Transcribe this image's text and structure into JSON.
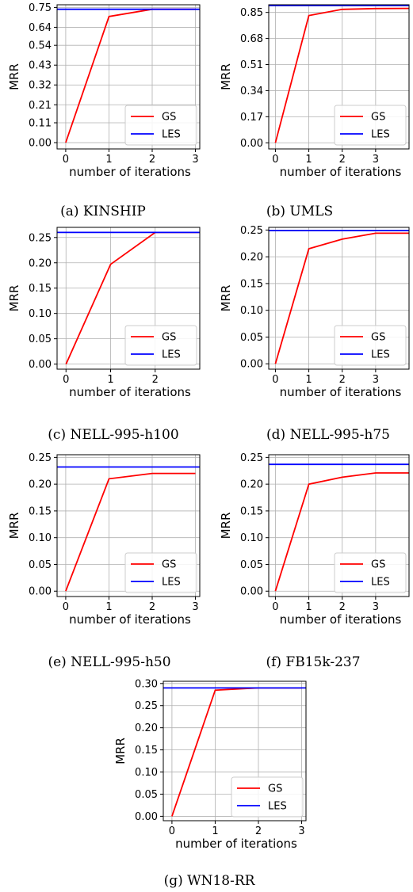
{
  "colors": {
    "gs": "#ff0000",
    "les": "#0000ff",
    "grid": "#b0b0b0",
    "axis": "#000000"
  },
  "chart_data": [
    {
      "type": "line",
      "caption": "(a) KINSHIP",
      "xlabel": "number of iterations",
      "ylabel": "MRR",
      "xlim": [
        -0.2,
        3.1
      ],
      "ylim": [
        -0.035,
        0.765
      ],
      "xticks": [
        0,
        1,
        2,
        3
      ],
      "yticks": [
        0.0,
        0.11,
        0.21,
        0.32,
        0.43,
        0.54,
        0.64,
        0.75
      ],
      "ytick_labels": [
        "0.00",
        "0.11",
        "0.21",
        "0.32",
        "0.43",
        "0.54",
        "0.64",
        "0.75"
      ],
      "grid": true,
      "legend_position": "lower-right",
      "series": [
        {
          "name": "GS",
          "color": "#ff0000",
          "x": [
            0,
            1,
            2,
            3
          ],
          "y": [
            0.0,
            0.7,
            0.74,
            0.74
          ]
        },
        {
          "name": "LES",
          "color": "#0000ff",
          "x": [
            -0.2,
            3.1
          ],
          "y": [
            0.74,
            0.74
          ]
        }
      ]
    },
    {
      "type": "line",
      "caption": "(b) UMLS",
      "xlabel": "number of iterations",
      "ylabel": "MRR",
      "xlim": [
        -0.2,
        4.0
      ],
      "ylim": [
        -0.04,
        0.9
      ],
      "xticks": [
        0,
        1,
        2,
        3
      ],
      "yticks": [
        0.0,
        0.17,
        0.34,
        0.51,
        0.68,
        0.85
      ],
      "ytick_labels": [
        "0.00",
        "0.17",
        "0.34",
        "0.51",
        "0.68",
        "0.85"
      ],
      "grid": true,
      "legend_position": "lower-right",
      "series": [
        {
          "name": "GS",
          "color": "#ff0000",
          "x": [
            0,
            1,
            2,
            3,
            4
          ],
          "y": [
            0.0,
            0.83,
            0.87,
            0.875,
            0.876
          ]
        },
        {
          "name": "LES",
          "color": "#0000ff",
          "x": [
            -0.2,
            4.0
          ],
          "y": [
            0.895,
            0.895
          ]
        }
      ]
    },
    {
      "type": "line",
      "caption": "(c) NELL-995-h100",
      "xlabel": "number of iterations",
      "ylabel": "MRR",
      "xlim": [
        -0.2,
        3.0
      ],
      "ylim": [
        -0.01,
        0.27
      ],
      "xticks": [
        0,
        1,
        2
      ],
      "yticks": [
        0.0,
        0.05,
        0.1,
        0.15,
        0.2,
        0.25
      ],
      "ytick_labels": [
        "0.00",
        "0.05",
        "0.10",
        "0.15",
        "0.20",
        "0.25"
      ],
      "grid": true,
      "legend_position": "lower-right",
      "series": [
        {
          "name": "GS",
          "color": "#ff0000",
          "x": [
            0,
            1,
            2,
            3
          ],
          "y": [
            0.0,
            0.197,
            0.26,
            0.26
          ]
        },
        {
          "name": "LES",
          "color": "#0000ff",
          "x": [
            -0.2,
            3.0
          ],
          "y": [
            0.26,
            0.26
          ]
        }
      ]
    },
    {
      "type": "line",
      "caption": "(d) NELL-995-h75",
      "xlabel": "number of iterations",
      "ylabel": "MRR",
      "xlim": [
        -0.2,
        4.0
      ],
      "ylim": [
        -0.01,
        0.255
      ],
      "xticks": [
        0,
        1,
        2,
        3
      ],
      "yticks": [
        0.0,
        0.05,
        0.1,
        0.15,
        0.2,
        0.25
      ],
      "ytick_labels": [
        "0.00",
        "0.05",
        "0.10",
        "0.15",
        "0.20",
        "0.25"
      ],
      "grid": true,
      "legend_position": "lower-right",
      "series": [
        {
          "name": "GS",
          "color": "#ff0000",
          "x": [
            0,
            1,
            2,
            3,
            4
          ],
          "y": [
            0.0,
            0.215,
            0.233,
            0.244,
            0.244
          ]
        },
        {
          "name": "LES",
          "color": "#0000ff",
          "x": [
            -0.2,
            4.0
          ],
          "y": [
            0.249,
            0.249
          ]
        }
      ]
    },
    {
      "type": "line",
      "caption": "(e) NELL-995-h50",
      "xlabel": "number of iterations",
      "ylabel": "MRR",
      "xlim": [
        -0.2,
        3.1
      ],
      "ylim": [
        -0.01,
        0.255
      ],
      "xticks": [
        0,
        1,
        2,
        3
      ],
      "yticks": [
        0.0,
        0.05,
        0.1,
        0.15,
        0.2,
        0.25
      ],
      "ytick_labels": [
        "0.00",
        "0.05",
        "0.10",
        "0.15",
        "0.20",
        "0.25"
      ],
      "grid": true,
      "legend_position": "lower-right",
      "series": [
        {
          "name": "GS",
          "color": "#ff0000",
          "x": [
            0,
            1,
            2,
            3
          ],
          "y": [
            0.0,
            0.21,
            0.22,
            0.22
          ]
        },
        {
          "name": "LES",
          "color": "#0000ff",
          "x": [
            -0.2,
            3.1
          ],
          "y": [
            0.232,
            0.232
          ]
        }
      ]
    },
    {
      "type": "line",
      "caption": "(f) FB15k-237",
      "xlabel": "number of iterations",
      "ylabel": "MRR",
      "xlim": [
        -0.2,
        4.0
      ],
      "ylim": [
        -0.01,
        0.255
      ],
      "xticks": [
        0,
        1,
        2,
        3
      ],
      "yticks": [
        0.0,
        0.05,
        0.1,
        0.15,
        0.2,
        0.25
      ],
      "ytick_labels": [
        "0.00",
        "0.05",
        "0.10",
        "0.15",
        "0.20",
        "0.25"
      ],
      "grid": true,
      "legend_position": "lower-right",
      "series": [
        {
          "name": "GS",
          "color": "#ff0000",
          "x": [
            0,
            1,
            2,
            3,
            4
          ],
          "y": [
            0.0,
            0.2,
            0.213,
            0.221,
            0.221
          ]
        },
        {
          "name": "LES",
          "color": "#0000ff",
          "x": [
            -0.2,
            4.0
          ],
          "y": [
            0.237,
            0.237
          ]
        }
      ]
    },
    {
      "type": "line",
      "caption": "(g) WN18-RR",
      "xlabel": "number of iterations",
      "ylabel": "MRR",
      "xlim": [
        -0.2,
        3.1
      ],
      "ylim": [
        -0.01,
        0.305
      ],
      "xticks": [
        0,
        1,
        2,
        3
      ],
      "yticks": [
        0.0,
        0.05,
        0.1,
        0.15,
        0.2,
        0.25,
        0.3
      ],
      "ytick_labels": [
        "0.00",
        "0.05",
        "0.10",
        "0.15",
        "0.20",
        "0.25",
        "0.30"
      ],
      "grid": true,
      "legend_position": "lower-right",
      "series": [
        {
          "name": "GS",
          "color": "#ff0000",
          "x": [
            0,
            1,
            2,
            3
          ],
          "y": [
            0.0,
            0.285,
            0.29,
            0.29
          ]
        },
        {
          "name": "LES",
          "color": "#0000ff",
          "x": [
            -0.2,
            3.1
          ],
          "y": [
            0.29,
            0.29
          ]
        }
      ]
    }
  ]
}
